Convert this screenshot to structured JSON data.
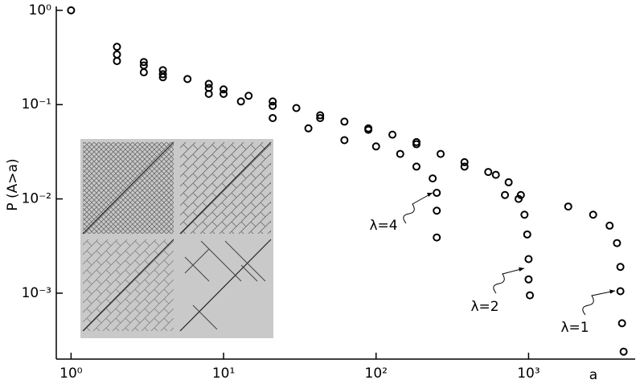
{
  "chart_data": {
    "type": "scatter",
    "log_x": true,
    "log_y": true,
    "x_label": "a",
    "y_label": "P (A>a)",
    "xlim": [
      0.8,
      5000
    ],
    "ylim": [
      0.0002,
      1.1
    ],
    "xticks": [
      {
        "value": 1,
        "label": "10⁰"
      },
      {
        "value": 10,
        "label": "10¹"
      },
      {
        "value": 100,
        "label": "10²"
      },
      {
        "value": 1000,
        "label": "10³"
      }
    ],
    "yticks": [
      {
        "value": 1,
        "label": "10⁰"
      },
      {
        "value": 0.1,
        "label": "10⁻¹"
      },
      {
        "value": 0.01,
        "label": "10⁻²"
      },
      {
        "value": 0.001,
        "label": "10⁻³"
      }
    ],
    "marker": "open-circle",
    "series": [
      {
        "name": "λ=4",
        "color": "#000000",
        "x": [
          2,
          3,
          4,
          8,
          13,
          21,
          36,
          62,
          100,
          144,
          184,
          235,
          250,
          250,
          250
        ],
        "values": [
          0.29,
          0.22,
          0.195,
          0.13,
          0.108,
          0.072,
          0.056,
          0.042,
          0.036,
          0.03,
          0.022,
          0.0165,
          0.0116,
          0.0075,
          0.0039
        ]
      },
      {
        "name": "λ=2",
        "color": "#000000",
        "x": [
          2,
          3,
          4,
          8,
          10,
          21,
          43,
          89,
          184,
          380,
          610,
          700,
          860,
          940,
          980,
          1000,
          1000,
          1020
        ],
        "values": [
          0.34,
          0.26,
          0.21,
          0.15,
          0.13,
          0.097,
          0.072,
          0.054,
          0.038,
          0.022,
          0.018,
          0.011,
          0.01,
          0.0068,
          0.0042,
          0.0023,
          0.0014,
          0.00095
        ]
      },
      {
        "name": "λ=1",
        "color": "#000000",
        "x": [
          1,
          2,
          3,
          4,
          5.8,
          8,
          10,
          14.6,
          21,
          30,
          43,
          62,
          89,
          128,
          184,
          265,
          380,
          544,
          740,
          890,
          1820,
          2650,
          3400,
          3800,
          4000,
          4000,
          4100,
          4200
        ],
        "values": [
          1,
          0.41,
          0.283,
          0.232,
          0.187,
          0.166,
          0.145,
          0.124,
          0.108,
          0.092,
          0.077,
          0.066,
          0.056,
          0.048,
          0.04,
          0.03,
          0.0245,
          0.0193,
          0.015,
          0.011,
          0.0083,
          0.0068,
          0.0052,
          0.0034,
          0.0019,
          0.00105,
          0.00048,
          0.00024
        ]
      }
    ]
  }
}
